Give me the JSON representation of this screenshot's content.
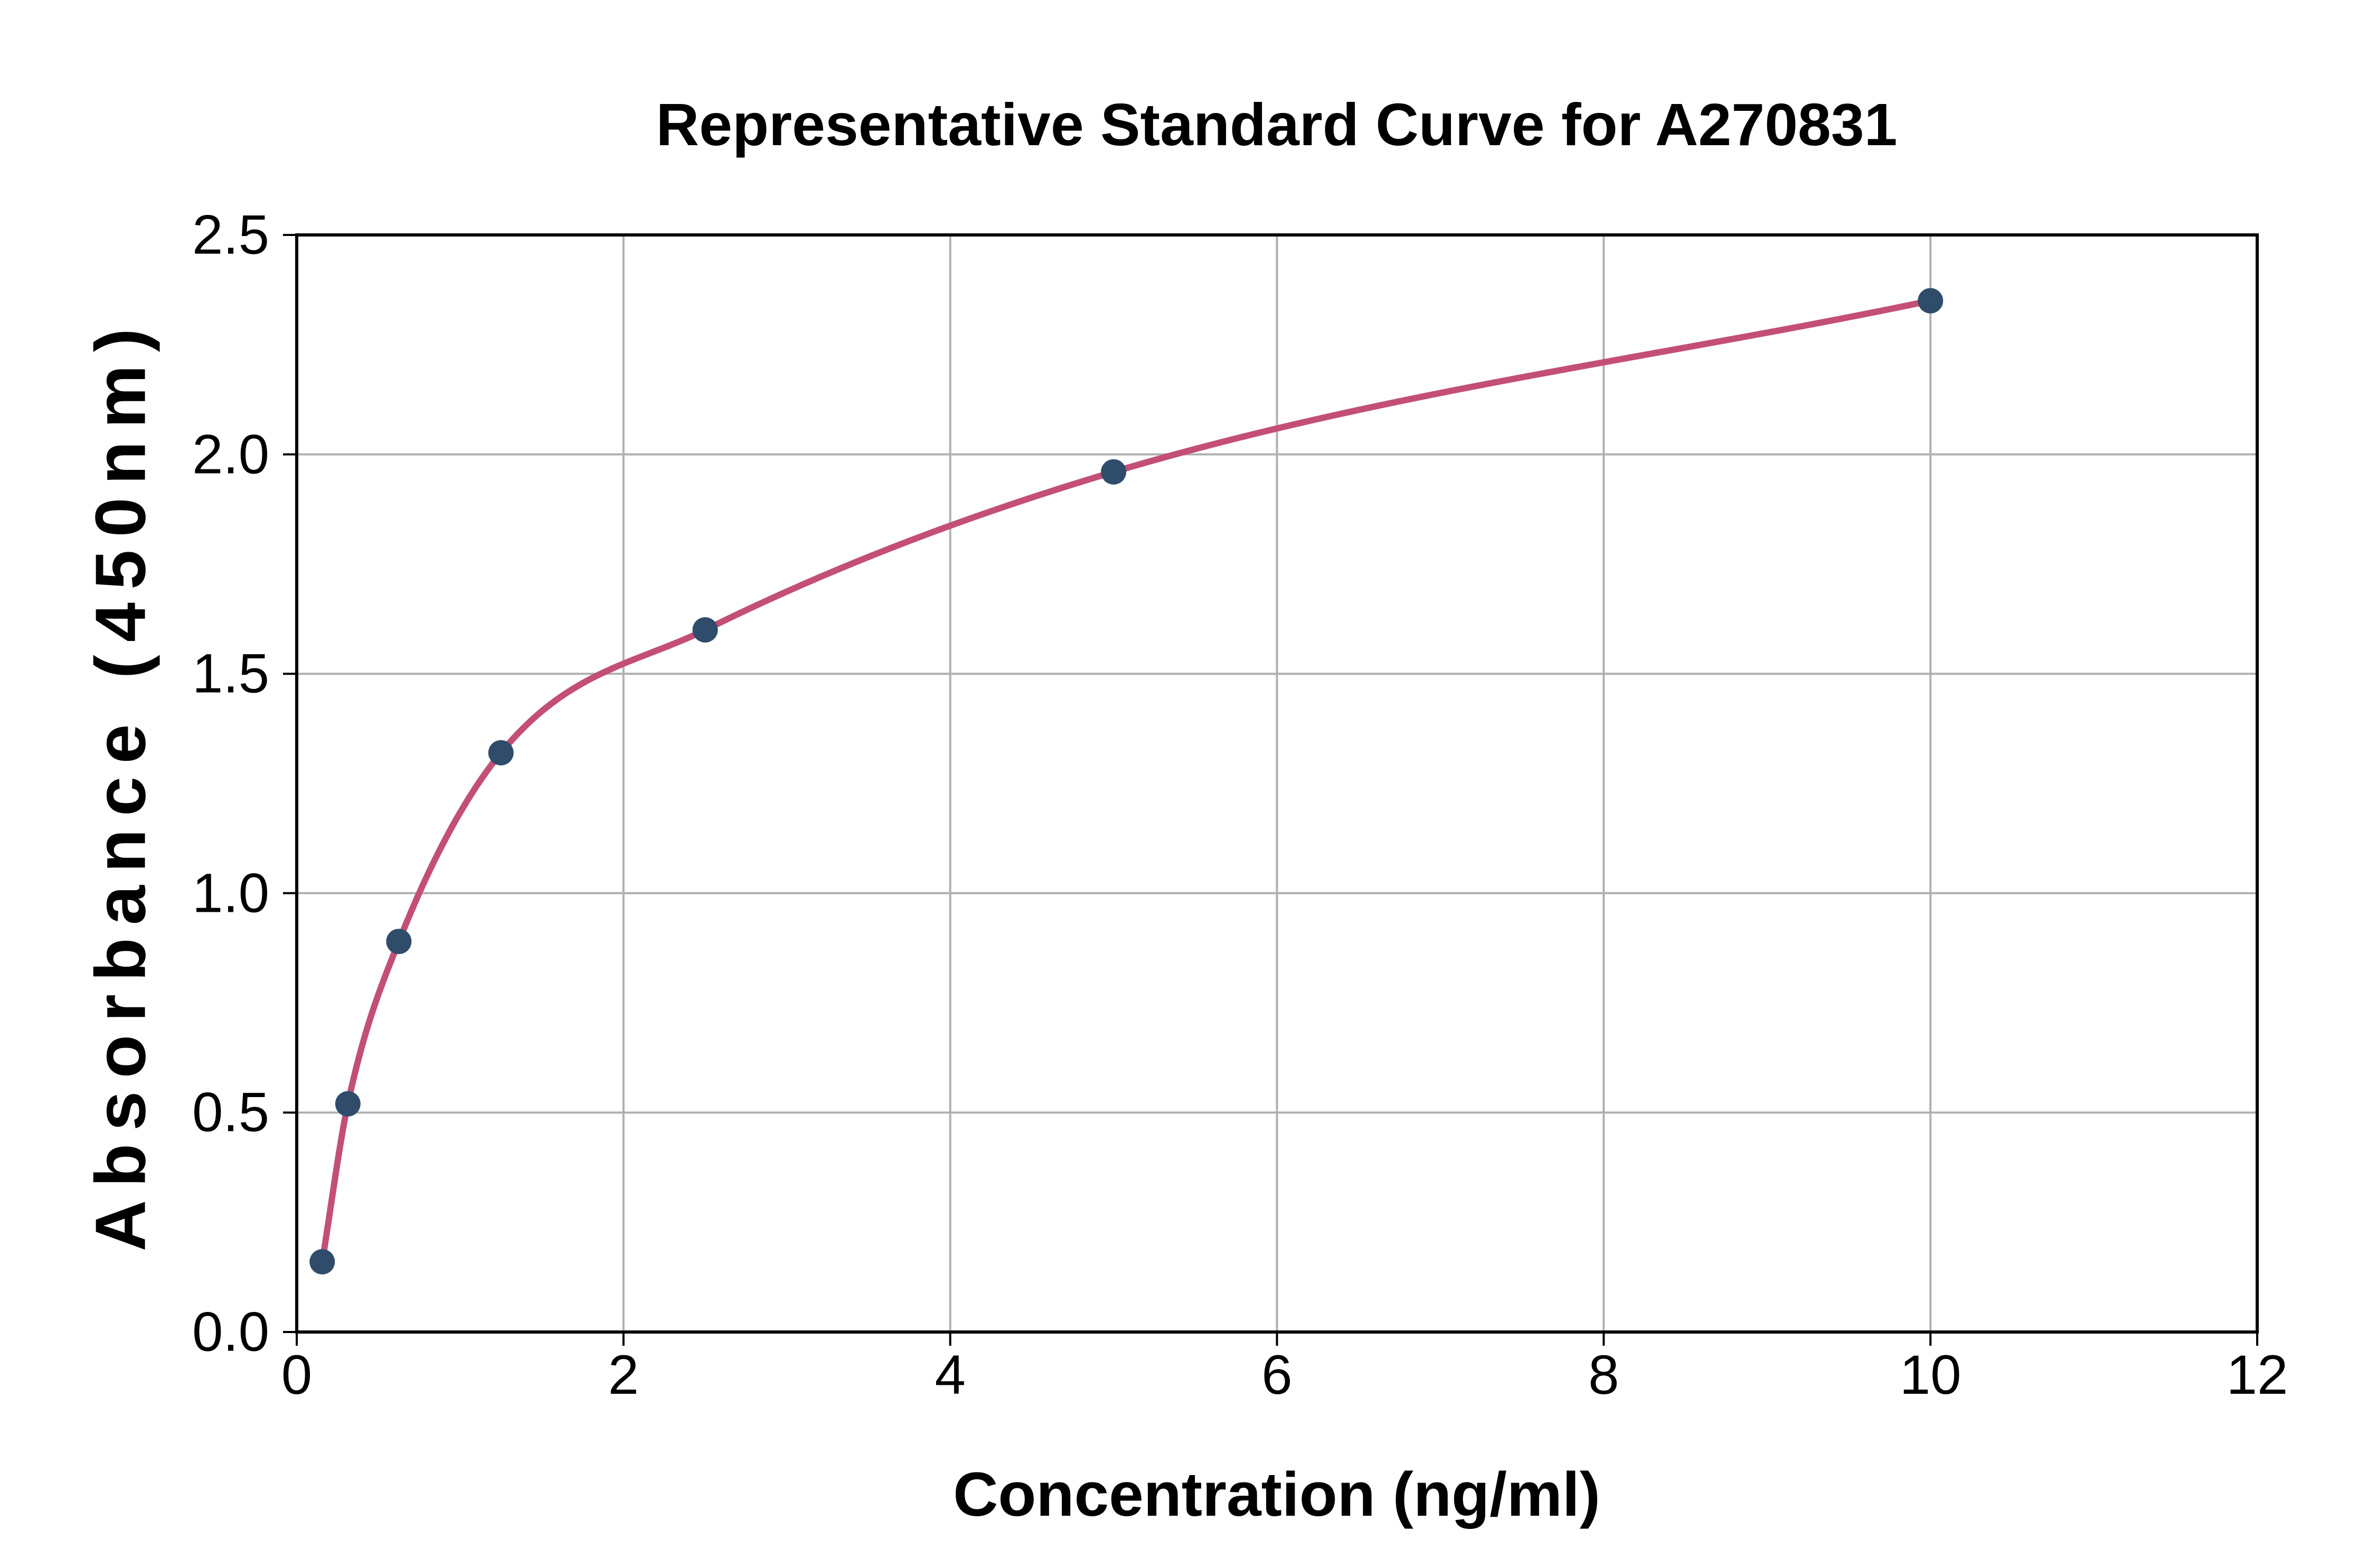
{
  "chart_data": {
    "type": "scatter",
    "title": "Representative Standard Curve for A270831",
    "xlabel": "Concentration (ng/ml)",
    "ylabel": "Absorbance (450nm)",
    "xlim": [
      0,
      12
    ],
    "ylim": [
      0.0,
      2.5
    ],
    "x_ticks": [
      {
        "value": 0,
        "label": "0"
      },
      {
        "value": 2,
        "label": "2"
      },
      {
        "value": 4,
        "label": "4"
      },
      {
        "value": 6,
        "label": "6"
      },
      {
        "value": 8,
        "label": "8"
      },
      {
        "value": 10,
        "label": "10"
      },
      {
        "value": 12,
        "label": "12"
      }
    ],
    "y_ticks": [
      {
        "value": 0.0,
        "label": "0.0"
      },
      {
        "value": 0.5,
        "label": "0.5"
      },
      {
        "value": 1.0,
        "label": "1.0"
      },
      {
        "value": 1.5,
        "label": "1.5"
      },
      {
        "value": 2.0,
        "label": "2.0"
      },
      {
        "value": 2.5,
        "label": "2.5"
      }
    ],
    "grid": true,
    "legend_position": "none",
    "colors": {
      "point_color": "#2f4c6b",
      "curve_color": "#c34f76",
      "grid_color": "#b0b0b0",
      "spine_color": "#000000",
      "background": "#ffffff"
    },
    "series": [
      {
        "name": "standard-points",
        "type": "scatter",
        "color": "#2f4c6b",
        "x": [
          0.156,
          0.313,
          0.625,
          1.25,
          2.5,
          5,
          10
        ],
        "y": [
          0.16,
          0.52,
          0.89,
          1.32,
          1.6,
          1.96,
          2.35
        ]
      },
      {
        "name": "fitted-curve",
        "type": "line",
        "color": "#c34f76",
        "x": [
          0.156,
          0.313,
          0.625,
          1.25,
          2.5,
          5,
          10
        ],
        "y": [
          0.16,
          0.52,
          0.89,
          1.32,
          1.6,
          1.96,
          2.35
        ]
      }
    ]
  }
}
